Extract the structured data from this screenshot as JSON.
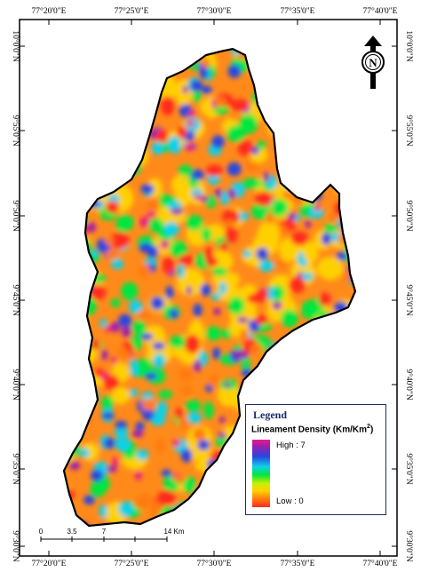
{
  "map": {
    "longitude_labels": [
      "77°20'0\"E",
      "77°25'0\"E",
      "77°30'0\"E",
      "77°35'0\"E",
      "77°40'0\"E"
    ],
    "latitude_labels": [
      "10°0'0\"N",
      "9°55'0\"N",
      "9°50'0\"N",
      "9°45'0\"N",
      "9°40'0\"N",
      "9°35'0\"N",
      "9°30'0\"N"
    ],
    "north_arrow_letter": "N",
    "colors": {
      "high": "#e8198b",
      "purple": "#9a1fb0",
      "blue": "#2846e0",
      "cyan": "#0fd0e8",
      "green": "#00e640",
      "yellow": "#ffd000",
      "orange": "#ff7a10",
      "red": "#ff2a1a"
    }
  },
  "scale_bar": {
    "ticks": [
      "0",
      "3.5",
      "7",
      "14 Km"
    ]
  },
  "legend": {
    "title": "Legend",
    "subtitle": "Lineament Density (Km/Km",
    "superscript": "2",
    "subtitle_close": ")",
    "high": "High : 7",
    "low": "Low : 0"
  }
}
